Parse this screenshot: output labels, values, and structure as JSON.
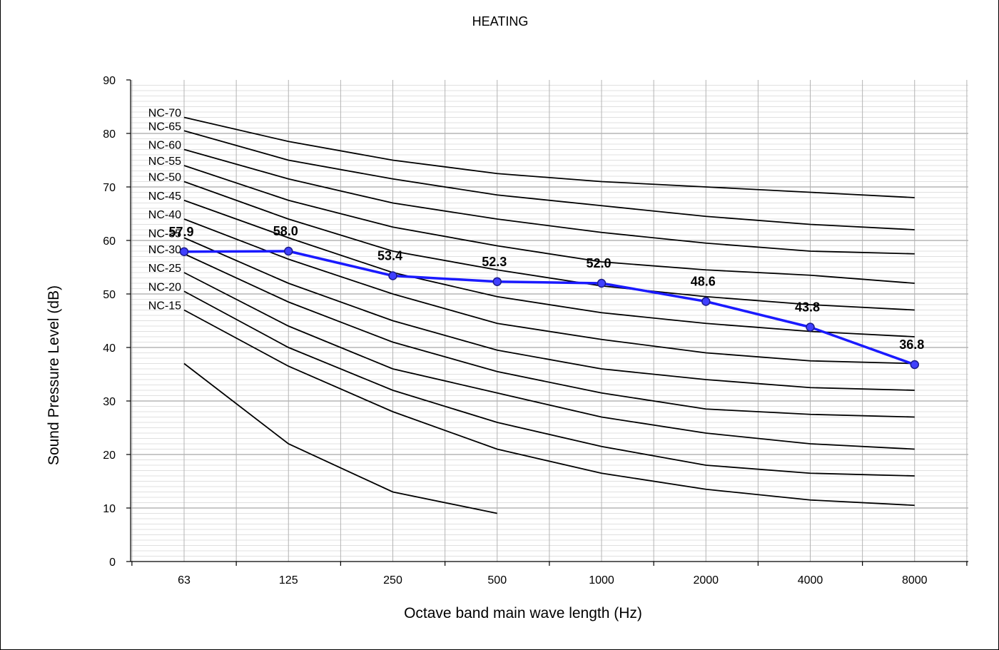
{
  "chart_data": {
    "type": "line",
    "title": "HEATING",
    "xlabel": "Octave band main wave length (Hz)",
    "ylabel": "Sound Pressure Level (dB)",
    "categories": [
      "63",
      "125",
      "250",
      "500",
      "1000",
      "2000",
      "4000",
      "8000"
    ],
    "ylim": [
      0,
      90
    ],
    "yticks": [
      0,
      10,
      20,
      30,
      40,
      50,
      60,
      70,
      80,
      90
    ],
    "grid": true,
    "legend": "none",
    "reference_curves": [
      {
        "name": "NC-70",
        "values": [
          83,
          78.5,
          75,
          72.5,
          71,
          70,
          69,
          68
        ]
      },
      {
        "name": "NC-65",
        "values": [
          80.5,
          75,
          71.5,
          68.5,
          66.5,
          64.5,
          63,
          62
        ]
      },
      {
        "name": "NC-60",
        "values": [
          77,
          71.5,
          67,
          64,
          61.5,
          59.5,
          58,
          57.5
        ]
      },
      {
        "name": "NC-55",
        "values": [
          74,
          67.5,
          62.5,
          59,
          56,
          54.5,
          53.5,
          52
        ]
      },
      {
        "name": "NC-50",
        "values": [
          71,
          64,
          58,
          54.5,
          51.5,
          49.5,
          48,
          47
        ]
      },
      {
        "name": "NC-45",
        "values": [
          67.5,
          60.5,
          54,
          49.5,
          46.5,
          44.5,
          43,
          42
        ]
      },
      {
        "name": "NC-40",
        "values": [
          64,
          56.5,
          50,
          44.5,
          41.5,
          39,
          37.5,
          37
        ]
      },
      {
        "name": "NC-35",
        "values": [
          60.5,
          52,
          45,
          39.5,
          36,
          34,
          32.5,
          32
        ]
      },
      {
        "name": "NC-30",
        "values": [
          57.5,
          48.5,
          41,
          35.5,
          31.5,
          28.5,
          27.5,
          27
        ]
      },
      {
        "name": "NC-25",
        "values": [
          54,
          44,
          36,
          31.5,
          27,
          24,
          22,
          21
        ]
      },
      {
        "name": "NC-20",
        "values": [
          50.5,
          40,
          32,
          26,
          21.5,
          18,
          16.5,
          16
        ]
      },
      {
        "name": "NC-15",
        "values": [
          47,
          36.5,
          28,
          21,
          16.5,
          13.5,
          11.5,
          10.5
        ]
      },
      {
        "name": "",
        "values": [
          37,
          22,
          13,
          9,
          null,
          null,
          null,
          null
        ]
      }
    ],
    "series": [
      {
        "name": "",
        "color": "#1a1aff",
        "values": [
          57.9,
          58.0,
          53.4,
          52.3,
          52.0,
          48.6,
          43.8,
          36.8
        ]
      }
    ],
    "data_labels": [
      "57.9",
      "58.0",
      "53.4",
      "52.3",
      "52.0",
      "48.6",
      "43.8",
      "36.8"
    ]
  }
}
